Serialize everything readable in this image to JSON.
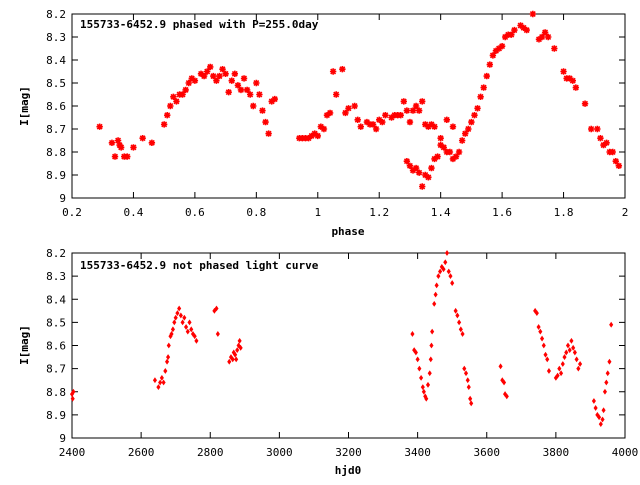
{
  "chart_data": [
    {
      "type": "scatter",
      "title": "155733-6452.9 phased with P=255.0day",
      "xlabel": "phase",
      "ylabel": "I[mag]",
      "xlim": [
        0.2,
        2.0
      ],
      "ylim": [
        8.2,
        9.0
      ],
      "y_inverted": true,
      "xticks": [
        0.2,
        0.4,
        0.6,
        0.8,
        1.0,
        1.2,
        1.4,
        1.6,
        1.8,
        2.0
      ],
      "xtick_labels": [
        "0.2",
        "0.4",
        "0.6",
        "0.8",
        "1",
        "1.2",
        "1.4",
        "1.6",
        "1.8",
        "2"
      ],
      "yticks": [
        8.2,
        8.3,
        8.4,
        8.5,
        8.6,
        8.7,
        8.8,
        8.9,
        9.0
      ],
      "ytick_labels": [
        "8.2",
        "8.3",
        "8.4",
        "8.5",
        "8.6",
        "8.7",
        "8.8",
        "8.9",
        "9"
      ],
      "grid": false,
      "marker_color": "#ff0000",
      "marker": "star",
      "points": [
        [
          0.29,
          8.69
        ],
        [
          0.33,
          8.76
        ],
        [
          0.34,
          8.82
        ],
        [
          0.35,
          8.75
        ],
        [
          0.355,
          8.77
        ],
        [
          0.36,
          8.78
        ],
        [
          0.37,
          8.82
        ],
        [
          0.38,
          8.82
        ],
        [
          0.4,
          8.78
        ],
        [
          0.43,
          8.74
        ],
        [
          0.46,
          8.76
        ],
        [
          0.5,
          8.68
        ],
        [
          0.51,
          8.64
        ],
        [
          0.52,
          8.6
        ],
        [
          0.53,
          8.56
        ],
        [
          0.54,
          8.58
        ],
        [
          0.55,
          8.55
        ],
        [
          0.56,
          8.55
        ],
        [
          0.57,
          8.53
        ],
        [
          0.58,
          8.5
        ],
        [
          0.59,
          8.48
        ],
        [
          0.6,
          8.49
        ],
        [
          0.62,
          8.46
        ],
        [
          0.63,
          8.47
        ],
        [
          0.64,
          8.45
        ],
        [
          0.65,
          8.43
        ],
        [
          0.66,
          8.47
        ],
        [
          0.67,
          8.49
        ],
        [
          0.68,
          8.47
        ],
        [
          0.69,
          8.44
        ],
        [
          0.7,
          8.46
        ],
        [
          0.71,
          8.54
        ],
        [
          0.72,
          8.49
        ],
        [
          0.73,
          8.46
        ],
        [
          0.74,
          8.51
        ],
        [
          0.75,
          8.53
        ],
        [
          0.76,
          8.48
        ],
        [
          0.77,
          8.53
        ],
        [
          0.78,
          8.55
        ],
        [
          0.79,
          8.6
        ],
        [
          0.8,
          8.5
        ],
        [
          0.81,
          8.55
        ],
        [
          0.82,
          8.62
        ],
        [
          0.83,
          8.67
        ],
        [
          0.84,
          8.72
        ],
        [
          0.85,
          8.58
        ],
        [
          0.86,
          8.57
        ],
        [
          0.94,
          8.74
        ],
        [
          0.95,
          8.74
        ],
        [
          0.96,
          8.74
        ],
        [
          0.97,
          8.74
        ],
        [
          0.98,
          8.73
        ],
        [
          0.99,
          8.72
        ],
        [
          1.0,
          8.73
        ],
        [
          1.01,
          8.69
        ],
        [
          1.02,
          8.7
        ],
        [
          1.03,
          8.64
        ],
        [
          1.04,
          8.63
        ],
        [
          1.05,
          8.45
        ],
        [
          1.06,
          8.55
        ],
        [
          1.08,
          8.44
        ],
        [
          1.09,
          8.63
        ],
        [
          1.1,
          8.61
        ],
        [
          1.12,
          8.6
        ],
        [
          1.13,
          8.66
        ],
        [
          1.14,
          8.69
        ],
        [
          1.16,
          8.67
        ],
        [
          1.17,
          8.68
        ],
        [
          1.18,
          8.68
        ],
        [
          1.19,
          8.7
        ],
        [
          1.2,
          8.66
        ],
        [
          1.21,
          8.67
        ],
        [
          1.22,
          8.64
        ],
        [
          1.24,
          8.65
        ],
        [
          1.25,
          8.64
        ],
        [
          1.26,
          8.64
        ],
        [
          1.27,
          8.64
        ],
        [
          1.28,
          8.58
        ],
        [
          1.29,
          8.62
        ],
        [
          1.3,
          8.67
        ],
        [
          1.31,
          8.62
        ],
        [
          1.32,
          8.6
        ],
        [
          1.33,
          8.62
        ],
        [
          1.34,
          8.58
        ],
        [
          1.35,
          8.68
        ],
        [
          1.36,
          8.69
        ],
        [
          1.37,
          8.68
        ],
        [
          1.38,
          8.69
        ],
        [
          1.29,
          8.84
        ],
        [
          1.3,
          8.86
        ],
        [
          1.31,
          8.88
        ],
        [
          1.32,
          8.87
        ],
        [
          1.33,
          8.89
        ],
        [
          1.34,
          8.95
        ],
        [
          1.35,
          8.9
        ],
        [
          1.36,
          8.91
        ],
        [
          1.37,
          8.87
        ],
        [
          1.38,
          8.83
        ],
        [
          1.39,
          8.82
        ],
        [
          1.4,
          8.77
        ],
        [
          1.41,
          8.78
        ],
        [
          1.42,
          8.8
        ],
        [
          1.43,
          8.8
        ],
        [
          1.44,
          8.83
        ],
        [
          1.45,
          8.82
        ],
        [
          1.46,
          8.8
        ],
        [
          1.47,
          8.75
        ],
        [
          1.48,
          8.72
        ],
        [
          1.49,
          8.7
        ],
        [
          1.4,
          8.74
        ],
        [
          1.42,
          8.66
        ],
        [
          1.44,
          8.69
        ],
        [
          1.5,
          8.67
        ],
        [
          1.51,
          8.64
        ],
        [
          1.52,
          8.61
        ],
        [
          1.53,
          8.56
        ],
        [
          1.54,
          8.52
        ],
        [
          1.55,
          8.47
        ],
        [
          1.56,
          8.42
        ],
        [
          1.57,
          8.38
        ],
        [
          1.58,
          8.36
        ],
        [
          1.59,
          8.35
        ],
        [
          1.6,
          8.34
        ],
        [
          1.61,
          8.3
        ],
        [
          1.62,
          8.29
        ],
        [
          1.63,
          8.29
        ],
        [
          1.64,
          8.27
        ],
        [
          1.66,
          8.25
        ],
        [
          1.67,
          8.26
        ],
        [
          1.68,
          8.27
        ],
        [
          1.7,
          8.2
        ],
        [
          1.72,
          8.31
        ],
        [
          1.73,
          8.3
        ],
        [
          1.74,
          8.28
        ],
        [
          1.75,
          8.3
        ],
        [
          1.77,
          8.35
        ],
        [
          1.8,
          8.45
        ],
        [
          1.81,
          8.48
        ],
        [
          1.82,
          8.48
        ],
        [
          1.83,
          8.49
        ],
        [
          1.84,
          8.52
        ],
        [
          1.87,
          8.59
        ],
        [
          1.89,
          8.7
        ],
        [
          1.91,
          8.7
        ],
        [
          1.92,
          8.74
        ],
        [
          1.93,
          8.77
        ],
        [
          1.94,
          8.76
        ],
        [
          1.95,
          8.8
        ],
        [
          1.96,
          8.8
        ],
        [
          1.97,
          8.84
        ],
        [
          1.98,
          8.86
        ]
      ]
    },
    {
      "type": "scatter",
      "title": "155733-6452.9 not phased light curve",
      "xlabel": "hjd0",
      "ylabel": "I[mag]",
      "xlim": [
        2400,
        4000
      ],
      "ylim": [
        8.2,
        9.0
      ],
      "y_inverted": true,
      "xticks": [
        2400,
        2600,
        2800,
        3000,
        3200,
        3400,
        3600,
        3800,
        4000
      ],
      "xtick_labels": [
        "2400",
        "2600",
        "2800",
        "3000",
        "3200",
        "3400",
        "3600",
        "3800",
        "4000"
      ],
      "yticks": [
        8.2,
        8.3,
        8.4,
        8.5,
        8.6,
        8.7,
        8.8,
        8.9,
        9.0
      ],
      "ytick_labels": [
        "8.2",
        "8.3",
        "8.4",
        "8.5",
        "8.6",
        "8.7",
        "8.8",
        "8.9",
        "9"
      ],
      "grid": false,
      "marker_color": "#ff0000",
      "marker": "diamond",
      "points": [
        [
          2400,
          8.81
        ],
        [
          2402,
          8.83
        ],
        [
          2404,
          8.8
        ],
        [
          2640,
          8.75
        ],
        [
          2650,
          8.78
        ],
        [
          2655,
          8.76
        ],
        [
          2660,
          8.74
        ],
        [
          2665,
          8.76
        ],
        [
          2670,
          8.71
        ],
        [
          2675,
          8.67
        ],
        [
          2678,
          8.65
        ],
        [
          2680,
          8.6
        ],
        [
          2685,
          8.56
        ],
        [
          2688,
          8.55
        ],
        [
          2692,
          8.53
        ],
        [
          2696,
          8.5
        ],
        [
          2700,
          8.48
        ],
        [
          2705,
          8.46
        ],
        [
          2710,
          8.44
        ],
        [
          2715,
          8.47
        ],
        [
          2720,
          8.5
        ],
        [
          2725,
          8.48
        ],
        [
          2730,
          8.52
        ],
        [
          2735,
          8.54
        ],
        [
          2740,
          8.5
        ],
        [
          2745,
          8.53
        ],
        [
          2750,
          8.55
        ],
        [
          2755,
          8.56
        ],
        [
          2760,
          8.58
        ],
        [
          2812,
          8.45
        ],
        [
          2818,
          8.44
        ],
        [
          2822,
          8.55
        ],
        [
          2855,
          8.67
        ],
        [
          2860,
          8.65
        ],
        [
          2865,
          8.66
        ],
        [
          2868,
          8.63
        ],
        [
          2872,
          8.64
        ],
        [
          2875,
          8.66
        ],
        [
          2878,
          8.62
        ],
        [
          2882,
          8.6
        ],
        [
          2885,
          8.58
        ],
        [
          2888,
          8.61
        ],
        [
          3385,
          8.55
        ],
        [
          3390,
          8.62
        ],
        [
          3395,
          8.63
        ],
        [
          3400,
          8.66
        ],
        [
          3405,
          8.7
        ],
        [
          3410,
          8.74
        ],
        [
          3415,
          8.78
        ],
        [
          3418,
          8.8
        ],
        [
          3422,
          8.82
        ],
        [
          3425,
          8.83
        ],
        [
          3430,
          8.77
        ],
        [
          3435,
          8.72
        ],
        [
          3438,
          8.66
        ],
        [
          3440,
          8.6
        ],
        [
          3442,
          8.54
        ],
        [
          3448,
          8.42
        ],
        [
          3452,
          8.38
        ],
        [
          3455,
          8.34
        ],
        [
          3460,
          8.3
        ],
        [
          3465,
          8.28
        ],
        [
          3470,
          8.26
        ],
        [
          3475,
          8.27
        ],
        [
          3480,
          8.24
        ],
        [
          3485,
          8.2
        ],
        [
          3490,
          8.28
        ],
        [
          3495,
          8.3
        ],
        [
          3500,
          8.33
        ],
        [
          3510,
          8.45
        ],
        [
          3515,
          8.47
        ],
        [
          3520,
          8.5
        ],
        [
          3525,
          8.53
        ],
        [
          3530,
          8.55
        ],
        [
          3535,
          8.7
        ],
        [
          3540,
          8.72
        ],
        [
          3545,
          8.75
        ],
        [
          3548,
          8.78
        ],
        [
          3552,
          8.83
        ],
        [
          3555,
          8.85
        ],
        [
          3640,
          8.69
        ],
        [
          3645,
          8.75
        ],
        [
          3650,
          8.76
        ],
        [
          3653,
          8.81
        ],
        [
          3658,
          8.82
        ],
        [
          3740,
          8.45
        ],
        [
          3745,
          8.46
        ],
        [
          3750,
          8.52
        ],
        [
          3755,
          8.54
        ],
        [
          3760,
          8.57
        ],
        [
          3765,
          8.6
        ],
        [
          3770,
          8.64
        ],
        [
          3775,
          8.66
        ],
        [
          3780,
          8.71
        ],
        [
          3800,
          8.74
        ],
        [
          3805,
          8.73
        ],
        [
          3810,
          8.7
        ],
        [
          3815,
          8.72
        ],
        [
          3820,
          8.68
        ],
        [
          3825,
          8.65
        ],
        [
          3830,
          8.63
        ],
        [
          3835,
          8.6
        ],
        [
          3840,
          8.62
        ],
        [
          3845,
          8.58
        ],
        [
          3850,
          8.61
        ],
        [
          3855,
          8.63
        ],
        [
          3860,
          8.66
        ],
        [
          3865,
          8.7
        ],
        [
          3870,
          8.68
        ],
        [
          3910,
          8.84
        ],
        [
          3915,
          8.87
        ],
        [
          3920,
          8.9
        ],
        [
          3925,
          8.91
        ],
        [
          3930,
          8.94
        ],
        [
          3935,
          8.92
        ],
        [
          3938,
          8.88
        ],
        [
          3942,
          8.8
        ],
        [
          3946,
          8.76
        ],
        [
          3950,
          8.72
        ],
        [
          3955,
          8.67
        ],
        [
          3960,
          8.51
        ]
      ]
    }
  ]
}
